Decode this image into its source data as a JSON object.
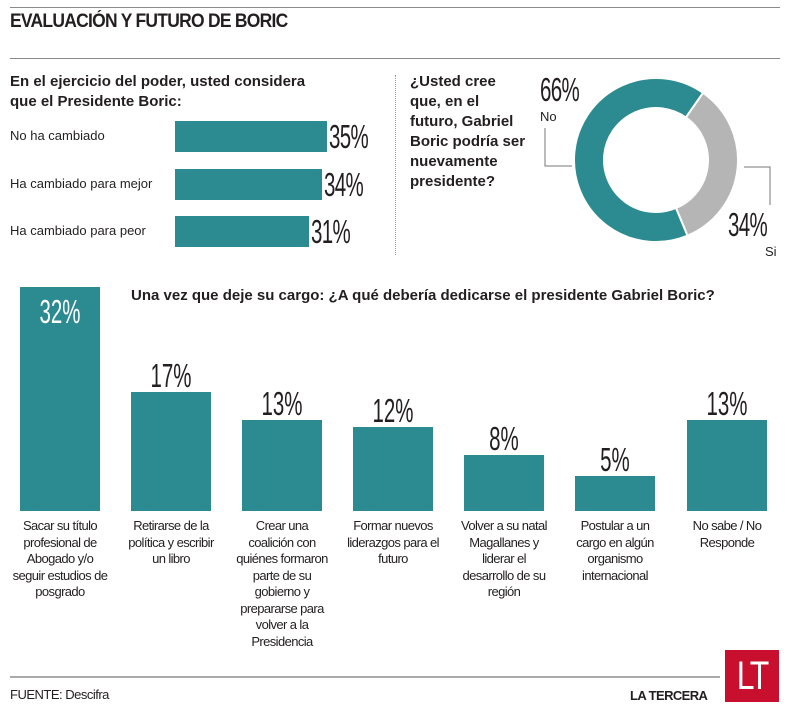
{
  "title": "EVALUACIÓN Y FUTURO DE BORIC",
  "colors": {
    "teal": "#2b8b90",
    "gray": "#b5b5b5",
    "brand_red": "#c8102e"
  },
  "chart_data": [
    {
      "type": "bar",
      "orientation": "horizontal",
      "title": "En el ejercicio del poder, usted considera que el Presidente Boric:",
      "categories": [
        "No ha cambiado",
        "Ha cambiado para mejor",
        "Ha cambiado para peor"
      ],
      "values": [
        35,
        34,
        31
      ],
      "value_labels": [
        "35%",
        "34%",
        "31%"
      ]
    },
    {
      "type": "pie",
      "donut": true,
      "title": "¿Usted cree que, en el futuro, Gabriel Boric podría ser nuevamente presidente?",
      "categories": [
        "No",
        "Si"
      ],
      "values": [
        66,
        34
      ],
      "value_labels": [
        "66%",
        "34%"
      ],
      "colors": [
        "#2b8b90",
        "#b5b5b5"
      ]
    },
    {
      "type": "bar",
      "orientation": "vertical",
      "title": "Una vez que deje su cargo: ¿A qué debería dedicarse el presidente Gabriel Boric?",
      "categories": [
        "Sacar su título profesional de Abogado y/o seguir estudios de posgrado",
        "Retirarse de la política y escribir un libro",
        "Crear una coalición con quiénes formaron parte de su gobierno y prepararse para volver a la Presidencia",
        "Formar nuevos liderazgos para el futuro",
        "Volver a su natal Magallanes y liderar el desarrollo de su región",
        "Postular a un cargo en algún organismo internacional",
        "No sabe / No Responde"
      ],
      "values": [
        32,
        17,
        13,
        12,
        8,
        5,
        13
      ],
      "value_labels": [
        "32%",
        "17%",
        "13%",
        "12%",
        "8%",
        "5%",
        "13%"
      ]
    }
  ],
  "footer": {
    "source": "FUENTE: Descifra",
    "brand": "LA TERCERA",
    "logo": "LT"
  }
}
